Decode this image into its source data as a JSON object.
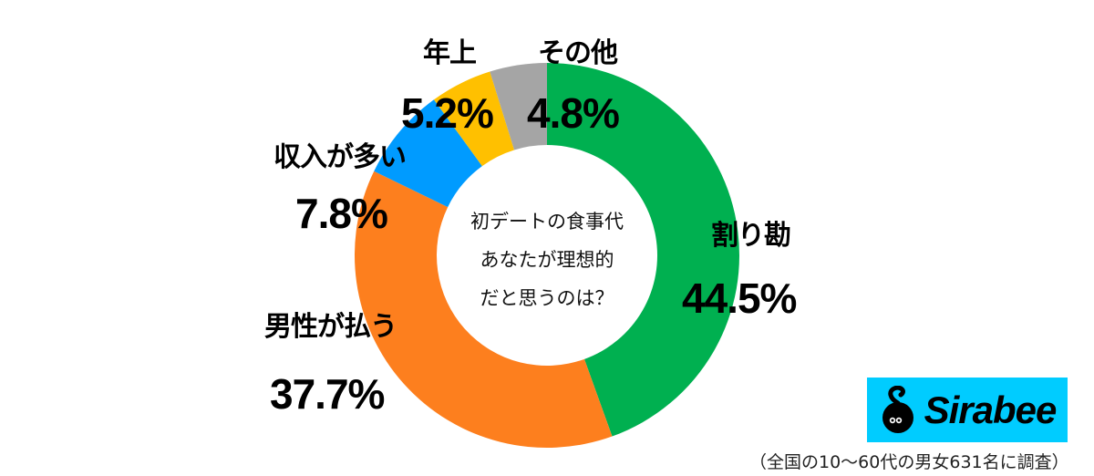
{
  "chart_data": {
    "type": "pie",
    "subtype": "donut",
    "title": "初デートの食事代 あなたが理想的 だと思うのは？",
    "start_angle": "12 o'clock, clockwise",
    "categories": [
      "割り勘",
      "男性が払う",
      "収入が多い",
      "年上",
      "その他"
    ],
    "values": [
      44.5,
      37.7,
      7.8,
      5.2,
      4.8
    ],
    "unit": "%",
    "colors": [
      "#00b050",
      "#fd7f1e",
      "#009bff",
      "#ffc000",
      "#a5a5a5"
    ],
    "source_note": "（全国の10〜60代の男女631名に調査）"
  },
  "center": {
    "line1": "初デートの食事代",
    "line2": "あなたが理想的",
    "line3": "だと思うのは？"
  },
  "labels": [
    {
      "name": "割り勘",
      "pct": "44.5%"
    },
    {
      "name": "男性が払う",
      "pct": "37.7%"
    },
    {
      "name": "収入が多い",
      "pct": "7.8%"
    },
    {
      "name": "年上",
      "pct": "5.2%"
    },
    {
      "name": "その他",
      "pct": "4.8%"
    }
  ],
  "logo": {
    "text": "Sirabee",
    "bg_color": "#00ccff"
  },
  "footnote": "（全国の10〜60代の男女631名に調査）"
}
